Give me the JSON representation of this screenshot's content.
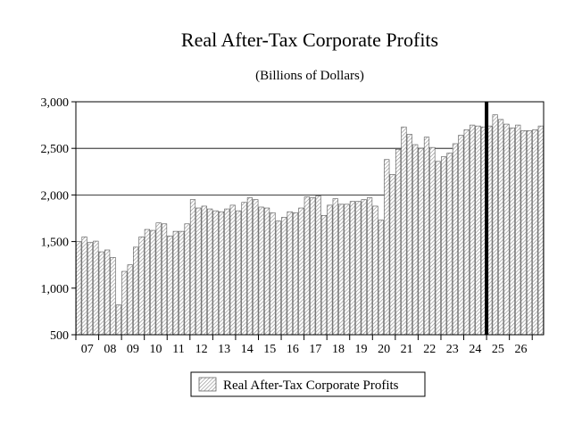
{
  "chart_data": {
    "type": "bar",
    "title": "Real After-Tax Corporate Profits",
    "subtitle": "(Billions of Dollars)",
    "xlabel": "",
    "ylabel": "",
    "ylim": [
      500,
      3000
    ],
    "yticks": [
      500,
      1000,
      1500,
      2000,
      2500,
      3000
    ],
    "ytick_labels": [
      "500",
      "1,000",
      "1,500",
      "2,000",
      "2,500",
      "3,000"
    ],
    "x_year_labels": [
      "07",
      "08",
      "09",
      "10",
      "11",
      "12",
      "13",
      "14",
      "15",
      "16",
      "17",
      "18",
      "19",
      "20",
      "21",
      "22",
      "23",
      "24",
      "25",
      "26"
    ],
    "gridlines": [
      2000,
      2500
    ],
    "forecast_divider_after_index": 71,
    "legend": "Real After-Tax Corporate Profits",
    "series": [
      {
        "name": "Real After-Tax Corporate Profits",
        "values": [
          1500,
          1550,
          1490,
          1505,
          1390,
          1410,
          1330,
          820,
          1180,
          1250,
          1440,
          1550,
          1630,
          1620,
          1700,
          1690,
          1560,
          1610,
          1610,
          1690,
          1950,
          1860,
          1880,
          1850,
          1830,
          1820,
          1850,
          1890,
          1830,
          1920,
          1970,
          1950,
          1870,
          1860,
          1810,
          1720,
          1760,
          1820,
          1810,
          1860,
          1980,
          1970,
          1990,
          1780,
          1890,
          1960,
          1900,
          1900,
          1930,
          1930,
          1950,
          1970,
          1880,
          1730,
          2380,
          2220,
          2490,
          2730,
          2650,
          2540,
          2500,
          2620,
          2510,
          2360,
          2410,
          2450,
          2550,
          2640,
          2700,
          2750,
          2740,
          2730,
          2740,
          2860,
          2810,
          2760,
          2720,
          2750,
          2690,
          2690,
          2700,
          2740
        ]
      }
    ]
  }
}
